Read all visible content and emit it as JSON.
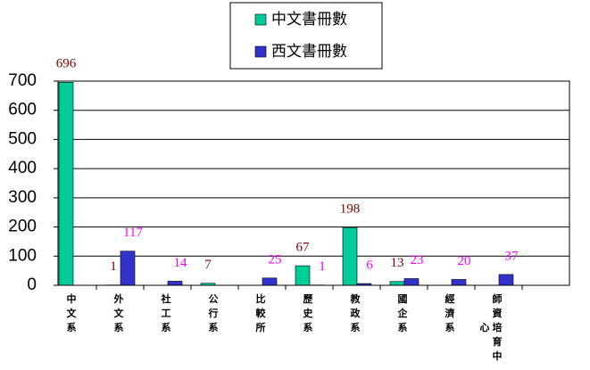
{
  "chart_data": {
    "type": "bar",
    "categories": [
      "中文系",
      "外文系",
      "社工系",
      "公行系",
      "比較所",
      "歷史系",
      "教政系",
      "國企系",
      "經濟系",
      "師資培育中心"
    ],
    "series": [
      {
        "name": "中文書冊數",
        "color": "#00cc99",
        "label_color": "#800000",
        "values": [
          696,
          1,
          null,
          7,
          null,
          67,
          198,
          13,
          null,
          null
        ]
      },
      {
        "name": "西文書冊數",
        "color": "#3333cc",
        "label_color": "#ff00ff",
        "values": [
          null,
          117,
          14,
          null,
          25,
          1,
          6,
          23,
          20,
          37
        ]
      }
    ],
    "ylim": [
      0,
      700
    ],
    "yticks": [
      0,
      100,
      200,
      300,
      400,
      500,
      600,
      700
    ],
    "grid": true,
    "legend": "top"
  }
}
